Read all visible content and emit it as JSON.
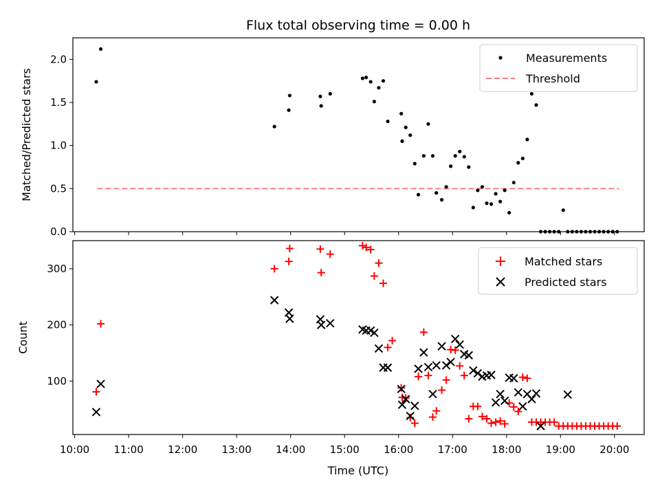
{
  "title": "Flux total observing time = 0.00 h",
  "xlabel": "Time (UTC)",
  "x_tick_labels": [
    "10:00",
    "11:00",
    "12:00",
    "13:00",
    "14:00",
    "15:00",
    "16:00",
    "17:00",
    "18:00",
    "19:00",
    "20:00"
  ],
  "colors": {
    "measurements": "#000000",
    "threshold": "#ff7f7f",
    "matched": "#ff0000",
    "predicted": "#000000"
  },
  "chart_data": [
    {
      "type": "scatter",
      "panel": "top",
      "ylabel": "Matched/Predicted stars",
      "xlim": [
        "09:58",
        "20:33"
      ],
      "ylim": [
        0,
        2.25
      ],
      "y_ticks": [
        0.0,
        0.5,
        1.0,
        1.5,
        2.0
      ],
      "y_tick_labels": [
        "0.0",
        "0.5",
        "1.0",
        "1.5",
        "2.0"
      ],
      "legend": {
        "placement": "top-right",
        "entries": [
          "Measurements",
          "Threshold"
        ]
      },
      "threshold": {
        "name": "Threshold",
        "value": 0.5,
        "x_range": [
          "10:25",
          "20:05"
        ]
      },
      "series": [
        {
          "name": "Measurements",
          "marker": "dot",
          "x": [
            "10:24",
            "10:29",
            "13:42",
            "13:58",
            "13:59",
            "14:33",
            "14:34",
            "14:44",
            "15:20",
            "15:24",
            "15:29",
            "15:33",
            "15:38",
            "15:43",
            "15:48",
            "16:03",
            "16:04",
            "16:08",
            "16:13",
            "16:18",
            "16:22",
            "16:28",
            "16:33",
            "16:38",
            "16:42",
            "16:48",
            "16:53",
            "16:58",
            "17:03",
            "17:08",
            "17:13",
            "17:18",
            "17:23",
            "17:28",
            "17:33",
            "17:38",
            "17:43",
            "17:48",
            "17:53",
            "17:58",
            "18:03",
            "18:08",
            "18:13",
            "18:18",
            "18:23",
            "18:28",
            "18:33",
            "18:38",
            "18:43",
            "18:48",
            "18:53",
            "18:58",
            "19:03",
            "19:08",
            "19:13",
            "19:18",
            "19:23",
            "19:28",
            "19:33",
            "19:38",
            "19:43",
            "19:48",
            "19:53",
            "19:58",
            "20:03"
          ],
          "y": [
            1.74,
            2.12,
            1.22,
            1.41,
            1.58,
            1.57,
            1.46,
            1.6,
            1.78,
            1.79,
            1.74,
            1.51,
            1.67,
            1.75,
            1.28,
            1.37,
            1.05,
            1.21,
            1.12,
            0.79,
            0.43,
            0.88,
            1.25,
            0.88,
            0.45,
            0.37,
            0.52,
            0.76,
            0.88,
            0.93,
            0.87,
            0.75,
            0.28,
            0.48,
            0.52,
            0.33,
            0.32,
            0.44,
            0.35,
            0.48,
            0.22,
            0.57,
            0.8,
            0.85,
            1.07,
            1.6,
            1.47,
            0,
            0,
            0,
            0,
            0,
            0.25,
            0,
            0,
            0,
            0,
            0,
            0,
            0,
            0,
            0,
            0,
            0,
            0
          ]
        }
      ]
    },
    {
      "type": "scatter",
      "panel": "bottom",
      "ylabel": "Count",
      "xlim": [
        "09:58",
        "20:33"
      ],
      "ylim": [
        5,
        350
      ],
      "y_ticks": [
        100,
        200,
        300
      ],
      "y_tick_labels": [
        "100",
        "200",
        "300"
      ],
      "legend": {
        "placement": "top-right",
        "entries": [
          "Matched stars",
          "Predicted stars"
        ]
      },
      "series": [
        {
          "name": "Matched stars",
          "marker": "plus",
          "x": [
            "10:24",
            "10:29",
            "13:42",
            "13:58",
            "13:59",
            "14:33",
            "14:34",
            "14:44",
            "15:20",
            "15:24",
            "15:29",
            "15:33",
            "15:38",
            "15:43",
            "15:48",
            "15:53",
            "16:03",
            "16:04",
            "16:08",
            "16:13",
            "16:18",
            "16:22",
            "16:28",
            "16:33",
            "16:38",
            "16:42",
            "16:48",
            "16:53",
            "16:58",
            "17:03",
            "17:08",
            "17:13",
            "17:18",
            "17:23",
            "17:28",
            "17:33",
            "17:38",
            "17:43",
            "17:48",
            "17:53",
            "17:58",
            "18:03",
            "18:08",
            "18:13",
            "18:18",
            "18:23",
            "18:28",
            "18:33",
            "18:38",
            "18:43",
            "18:48",
            "18:53",
            "18:58",
            "19:03",
            "19:08",
            "19:13",
            "19:18",
            "19:23",
            "19:28",
            "19:33",
            "19:38",
            "19:43",
            "19:48",
            "19:53",
            "19:58",
            "20:03"
          ],
          "y": [
            81,
            202,
            300,
            313,
            336,
            335,
            293,
            326,
            341,
            338,
            334,
            287,
            310,
            274,
            160,
            172,
            88,
            71,
            70,
            35,
            25,
            108,
            187,
            110,
            36,
            47,
            84,
            102,
            156,
            155,
            127,
            110,
            33,
            55,
            55,
            37,
            33,
            25,
            27,
            29,
            24,
            61,
            54,
            46,
            107,
            105,
            27,
            27,
            27,
            27,
            27,
            27,
            20,
            20,
            20,
            20,
            20,
            20,
            20,
            20,
            20,
            20,
            20,
            20,
            20,
            20
          ]
        },
        {
          "name": "Predicted stars",
          "marker": "x",
          "x": [
            "10:24",
            "10:29",
            "13:42",
            "13:58",
            "13:59",
            "14:33",
            "14:34",
            "14:44",
            "15:20",
            "15:24",
            "15:29",
            "15:33",
            "15:38",
            "15:43",
            "15:48",
            "16:03",
            "16:04",
            "16:08",
            "16:13",
            "16:18",
            "16:22",
            "16:28",
            "16:33",
            "16:38",
            "16:42",
            "16:48",
            "16:53",
            "16:58",
            "17:03",
            "17:08",
            "17:13",
            "17:18",
            "17:23",
            "17:28",
            "17:33",
            "17:38",
            "17:43",
            "17:48",
            "17:53",
            "17:58",
            "18:03",
            "18:08",
            "18:13",
            "18:18",
            "18:23",
            "18:28",
            "18:33",
            "18:38",
            "19:08"
          ],
          "y": [
            45,
            95,
            244,
            222,
            211,
            210,
            200,
            203,
            192,
            190,
            190,
            186,
            158,
            124,
            124,
            86,
            58,
            68,
            38,
            56,
            122,
            151,
            125,
            77,
            128,
            162,
            128,
            134,
            175,
            165,
            148,
            146,
            119,
            114,
            108,
            110,
            111,
            62,
            77,
            65,
            106,
            105,
            80,
            55,
            77,
            68,
            78,
            20,
            76
          ]
        }
      ]
    }
  ]
}
